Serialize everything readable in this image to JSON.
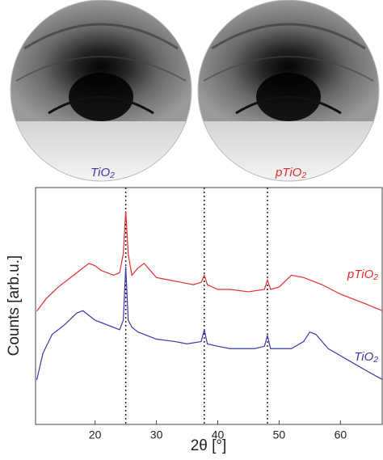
{
  "image_labels": [
    "TiO₂",
    "pTiO₂"
  ],
  "chart_data": {
    "type": "line",
    "xlabel": "2θ [°]",
    "ylabel": "Counts [arb.u.]",
    "xlim": [
      10.3,
      66.8
    ],
    "ylim": [
      0,
      100
    ],
    "xticks": [
      20,
      30,
      40,
      50,
      60
    ],
    "reference_lines": [
      25,
      37.8,
      48.1
    ],
    "series": [
      {
        "name": "pTiO₂",
        "color": "#e03030",
        "x": [
          10.5,
          12,
          14,
          16,
          18,
          19,
          20,
          21,
          22,
          23,
          24,
          24.6,
          25,
          25.4,
          26,
          27,
          28,
          29,
          30,
          32,
          34,
          36,
          37.3,
          37.8,
          38.3,
          40,
          42,
          45,
          47.6,
          48.1,
          48.6,
          50,
          52,
          54,
          55,
          57,
          60,
          62,
          64,
          66.8
        ],
        "values": [
          47.8,
          53,
          58,
          62,
          66,
          68,
          67,
          65,
          64,
          63,
          64,
          72,
          90,
          72,
          63,
          66,
          68,
          65,
          62,
          61,
          60,
          59,
          60,
          63,
          59,
          57,
          57,
          56,
          57,
          61,
          57,
          58,
          63,
          62,
          61,
          59,
          55,
          53,
          51,
          48
        ]
      },
      {
        "name": "TiO₂",
        "color": "#3a3aa8",
        "x": [
          10.5,
          11.5,
          13,
          15,
          17,
          18,
          20,
          22,
          24,
          24.6,
          25,
          25.4,
          26,
          27,
          30,
          33,
          35,
          37.3,
          37.8,
          38.3,
          40,
          42,
          46,
          47.6,
          48.1,
          48.6,
          50,
          52,
          54,
          55,
          56,
          58,
          60,
          62,
          64,
          66.8
        ],
        "values": [
          18.8,
          30,
          38,
          42,
          47,
          48,
          44,
          42,
          40,
          44,
          66.6,
          44,
          41,
          39,
          36,
          35,
          34,
          35,
          40,
          34,
          33,
          32,
          32,
          33,
          37.5,
          32,
          32,
          32,
          35,
          39,
          38,
          32,
          29,
          26,
          23,
          19
        ]
      }
    ]
  }
}
